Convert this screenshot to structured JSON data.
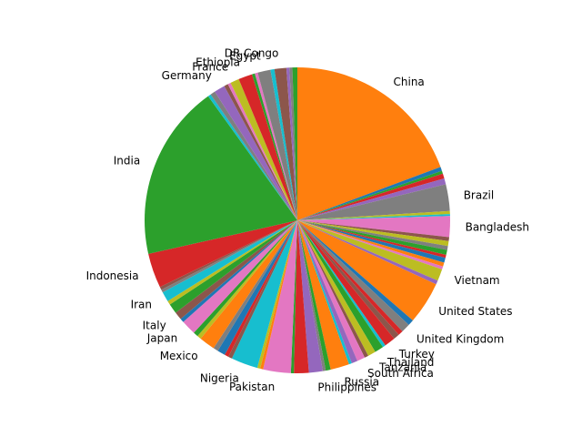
{
  "chart_data": {
    "type": "pie",
    "title": "",
    "start_angle_deg": 90,
    "direction": "clockwise",
    "unlabeled_color": "#8c564b",
    "slices": [
      {
        "label": "China",
        "value": 18.5,
        "color": "#ff7f0e"
      },
      {
        "label": "",
        "value": 0.4,
        "color": "#1f77b4"
      },
      {
        "label": "",
        "value": 0.3,
        "color": "#2ca02c"
      },
      {
        "label": "",
        "value": 0.5,
        "color": "#d62728"
      },
      {
        "label": "",
        "value": 0.6,
        "color": "#9467bd"
      },
      {
        "label": "Brazil",
        "value": 2.7,
        "color": "#7f7f7f"
      },
      {
        "label": "",
        "value": 0.3,
        "color": "#bcbd22"
      },
      {
        "label": "",
        "value": 0.2,
        "color": "#17becf"
      },
      {
        "label": "Bangladesh",
        "value": 2.1,
        "color": "#e377c2"
      },
      {
        "label": "",
        "value": 0.4,
        "color": "#8c564b"
      },
      {
        "label": "",
        "value": 0.5,
        "color": "#bcbd22"
      },
      {
        "label": "",
        "value": 0.4,
        "color": "#7f7f7f"
      },
      {
        "label": "",
        "value": 0.5,
        "color": "#2ca02c"
      },
      {
        "label": "",
        "value": 0.3,
        "color": "#d62728"
      },
      {
        "label": "",
        "value": 0.5,
        "color": "#1f77b4"
      },
      {
        "label": "",
        "value": 0.4,
        "color": "#ff7f0e"
      },
      {
        "label": "",
        "value": 0.3,
        "color": "#e377c2"
      },
      {
        "label": "Vietnam",
        "value": 1.2,
        "color": "#bcbd22"
      },
      {
        "label": "",
        "value": 0.4,
        "color": "#9467bd"
      },
      {
        "label": "United States",
        "value": 4.3,
        "color": "#ff7f0e"
      },
      {
        "label": "",
        "value": 0.6,
        "color": "#1f77b4"
      },
      {
        "label": "United Kingdom",
        "value": 0.9,
        "color": "#7f7f7f"
      },
      {
        "label": "",
        "value": 0.5,
        "color": "#d62728"
      },
      {
        "label": "",
        "value": 0.6,
        "color": "#8c564b"
      },
      {
        "label": "Turkey",
        "value": 1.1,
        "color": "#d62728"
      },
      {
        "label": "",
        "value": 0.3,
        "color": "#17becf"
      },
      {
        "label": "Thailand",
        "value": 0.9,
        "color": "#2ca02c"
      },
      {
        "label": "Tanzania",
        "value": 0.8,
        "color": "#bcbd22"
      },
      {
        "label": "",
        "value": 0.4,
        "color": "#8c564b"
      },
      {
        "label": "South Africa",
        "value": 0.8,
        "color": "#e377c2"
      },
      {
        "label": "",
        "value": 0.6,
        "color": "#9467bd"
      },
      {
        "label": "",
        "value": 0.3,
        "color": "#17becf"
      },
      {
        "label": "Russia",
        "value": 1.9,
        "color": "#ff7f0e"
      },
      {
        "label": "",
        "value": 0.5,
        "color": "#2ca02c"
      },
      {
        "label": "",
        "value": 0.3,
        "color": "#7f7f7f"
      },
      {
        "label": "Philippines",
        "value": 1.4,
        "color": "#9467bd"
      },
      {
        "label": "",
        "value": 1.5,
        "color": "#d62728"
      },
      {
        "label": "",
        "value": 0.3,
        "color": "#2ca02c"
      },
      {
        "label": "Pakistan",
        "value": 2.8,
        "color": "#e377c2"
      },
      {
        "label": "",
        "value": 0.3,
        "color": "#ff7f0e"
      },
      {
        "label": "",
        "value": 0.3,
        "color": "#bcbd22"
      },
      {
        "label": "Nigeria",
        "value": 2.7,
        "color": "#17becf"
      },
      {
        "label": "",
        "value": 0.4,
        "color": "#8c564b"
      },
      {
        "label": "",
        "value": 0.4,
        "color": "#d62728"
      },
      {
        "label": "",
        "value": 0.8,
        "color": "#1f77b4"
      },
      {
        "label": "",
        "value": 0.5,
        "color": "#7f7f7f"
      },
      {
        "label": "Mexico",
        "value": 1.6,
        "color": "#ff7f0e"
      },
      {
        "label": "",
        "value": 0.4,
        "color": "#bcbd22"
      },
      {
        "label": "",
        "value": 0.5,
        "color": "#2ca02c"
      },
      {
        "label": "Japan",
        "value": 1.5,
        "color": "#e377c2"
      },
      {
        "label": "",
        "value": 0.4,
        "color": "#1f77b4"
      },
      {
        "label": "Italy",
        "value": 0.8,
        "color": "#8c564b"
      },
      {
        "label": "",
        "value": 1.0,
        "color": "#2ca02c"
      },
      {
        "label": "",
        "value": 0.4,
        "color": "#bcbd22"
      },
      {
        "label": "Iran",
        "value": 1.0,
        "color": "#17becf"
      },
      {
        "label": "",
        "value": 0.3,
        "color": "#7f7f7f"
      },
      {
        "label": "",
        "value": 0.3,
        "color": "#8c564b"
      },
      {
        "label": "Indonesia",
        "value": 3.5,
        "color": "#d62728"
      },
      {
        "label": "India",
        "value": 17.8,
        "color": "#2ca02c"
      },
      {
        "label": "",
        "value": 0.3,
        "color": "#17becf"
      },
      {
        "label": "",
        "value": 0.5,
        "color": "#7f7f7f"
      },
      {
        "label": "Germany",
        "value": 1.1,
        "color": "#9467bd"
      },
      {
        "label": "",
        "value": 0.4,
        "color": "#8c564b"
      },
      {
        "label": "",
        "value": 0.3,
        "color": "#e377c2"
      },
      {
        "label": "France",
        "value": 0.9,
        "color": "#bcbd22"
      },
      {
        "label": "Ethiopia",
        "value": 1.4,
        "color": "#d62728"
      },
      {
        "label": "",
        "value": 0.3,
        "color": "#2ca02c"
      },
      {
        "label": "",
        "value": 0.3,
        "color": "#e377c2"
      },
      {
        "label": "Egypt",
        "value": 1.3,
        "color": "#7f7f7f"
      },
      {
        "label": "",
        "value": 0.4,
        "color": "#17becf"
      },
      {
        "label": "DR Congo",
        "value": 1.2,
        "color": "#8c564b"
      },
      {
        "label": "",
        "value": 0.3,
        "color": "#9467bd"
      },
      {
        "label": "",
        "value": 0.3,
        "color": "#7f7f7f"
      },
      {
        "label": "",
        "value": 0.5,
        "color": "#2ca02c"
      }
    ]
  }
}
